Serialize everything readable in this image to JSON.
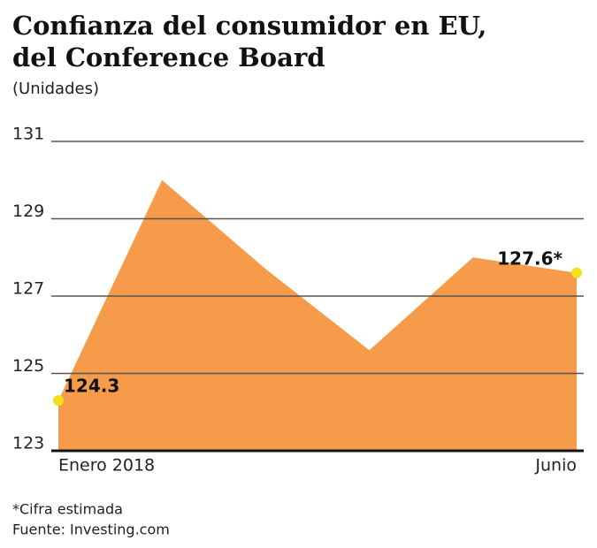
{
  "chart_data": {
    "type": "area",
    "title_lines": [
      "Confianza del consumidor en EU,",
      "del Conference Board"
    ],
    "subtitle": "(Unidades)",
    "categories": [
      "Enero 2018",
      null,
      null,
      null,
      null,
      "Junio"
    ],
    "values": [
      124.3,
      130.0,
      127.7,
      125.6,
      128.0,
      127.6
    ],
    "value_labels": [
      "124.3",
      null,
      null,
      null,
      null,
      "127.6*"
    ],
    "color": "#f59b4a",
    "marker_color": "#f2e01c",
    "ylim": [
      123,
      131
    ],
    "yticks": [
      123,
      125,
      127,
      129,
      131
    ],
    "grid": true,
    "notes": [
      "*Cifra estimada",
      "Fuente: Investing.com"
    ]
  }
}
